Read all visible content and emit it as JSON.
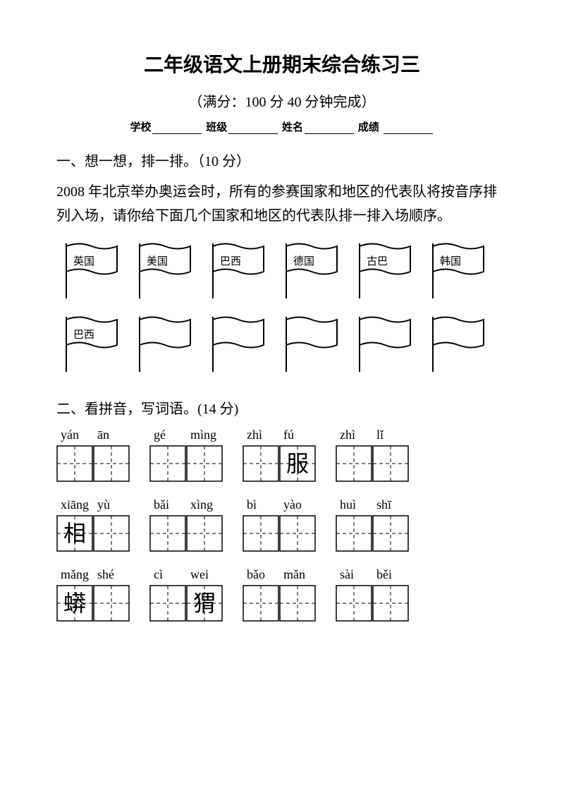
{
  "title": "二年级语文上册期末综合练习三",
  "subtitle": "（满分：100 分   40 分钟完成）",
  "info": {
    "school": "学校",
    "class": "班级",
    "name": "姓名",
    "score": "成绩"
  },
  "section1": {
    "heading": "一、想一想，排一排。（10 分）",
    "body": "2008 年北京举办奥运会时，所有的参赛国家和地区的代表队将按音序排列入场，请你给下面几个国家和地区的代表队排一排入场顺序。",
    "row1": [
      "英国",
      "美国",
      "巴西",
      "德国",
      "古巴",
      "韩国"
    ],
    "row2": [
      "巴西",
      "",
      "",
      "",
      "",
      ""
    ]
  },
  "section2": {
    "heading": "二、看拼音，写词语。(14 分)",
    "rows": [
      {
        "pinyin": [
          "yán",
          "ān",
          "gé",
          "mìng",
          "zhì",
          "fú",
          "zhì",
          "lǐ"
        ],
        "chars": [
          "",
          "",
          "",
          "",
          "",
          "服",
          "",
          ""
        ]
      },
      {
        "pinyin": [
          "xiāng",
          "yù",
          "bǎi",
          "xìng",
          "bì",
          "yào",
          "huì",
          "shī"
        ],
        "chars": [
          "相",
          "",
          "",
          "",
          "",
          "",
          "",
          ""
        ]
      },
      {
        "pinyin": [
          "mǎng",
          "shé",
          "cì",
          "wei",
          "bǎo",
          "mǎn",
          "sài",
          "běi"
        ],
        "chars": [
          "蟒",
          "",
          "",
          "猬",
          "",
          "",
          "",
          ""
        ]
      }
    ]
  },
  "colors": {
    "text": "#000000",
    "bg": "#ffffff",
    "stroke": "#000000"
  }
}
